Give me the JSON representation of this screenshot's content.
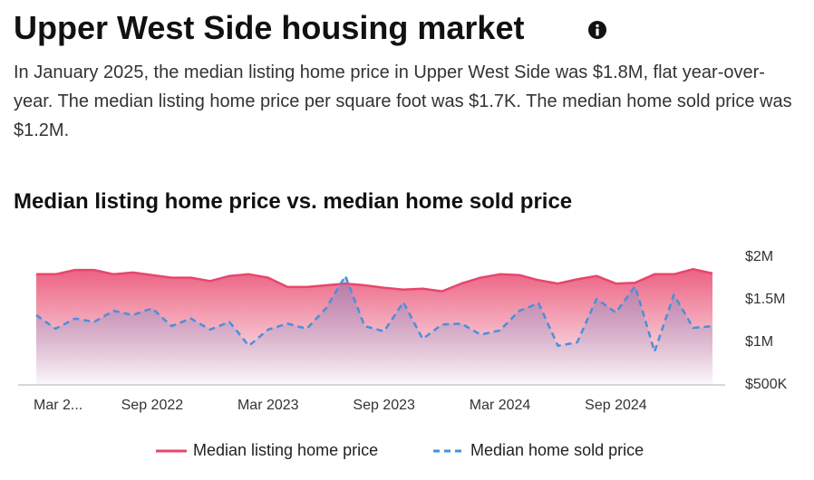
{
  "header": {
    "title": "Upper West Side housing market",
    "description": "In January 2025, the median listing home price in Upper West Side was $1.8M, flat year-over-year. The median listing home price per square foot was $1.7K. The median home sold price was $1.2M."
  },
  "chart_data": {
    "type": "line",
    "title": "Median listing home price vs. median home sold price",
    "categories": [
      "Mar 2...",
      null,
      null,
      null,
      null,
      null,
      "Sep 2022",
      null,
      null,
      null,
      null,
      null,
      "Mar 2023",
      null,
      null,
      null,
      null,
      null,
      "Sep 2023",
      null,
      null,
      null,
      null,
      null,
      "Mar 2024",
      null,
      null,
      null,
      null,
      null,
      "Sep 2024",
      null,
      null,
      null,
      null,
      null
    ],
    "series": [
      {
        "name": "Median listing home price",
        "color": "#e8466d",
        "dashed": false,
        "fill": true,
        "values": [
          1800000,
          1800000,
          1850000,
          1850000,
          1800000,
          1820000,
          1790000,
          1760000,
          1760000,
          1720000,
          1780000,
          1800000,
          1760000,
          1650000,
          1650000,
          1670000,
          1690000,
          1670000,
          1640000,
          1620000,
          1630000,
          1600000,
          1690000,
          1760000,
          1800000,
          1790000,
          1730000,
          1690000,
          1740000,
          1780000,
          1690000,
          1700000,
          1800000,
          1800000,
          1860000,
          1810000
        ]
      },
      {
        "name": "Median home sold price",
        "color": "#4a8fdb",
        "dashed": true,
        "fill": true,
        "values": [
          1320000,
          1160000,
          1280000,
          1240000,
          1370000,
          1320000,
          1400000,
          1190000,
          1280000,
          1150000,
          1240000,
          960000,
          1150000,
          1220000,
          1160000,
          1400000,
          1780000,
          1190000,
          1130000,
          1470000,
          1040000,
          1210000,
          1220000,
          1090000,
          1140000,
          1370000,
          1460000,
          960000,
          1000000,
          1510000,
          1350000,
          1660000,
          890000,
          1560000,
          1170000,
          1190000
        ]
      }
    ],
    "ylim": [
      500000,
      2000000
    ],
    "yticks": [
      {
        "value": 500000,
        "label": "$500K"
      },
      {
        "value": 1000000,
        "label": "$1M"
      },
      {
        "value": 1500000,
        "label": "$1.5M"
      },
      {
        "value": 2000000,
        "label": "$2M"
      }
    ],
    "grid": false,
    "legend": "bottom"
  }
}
